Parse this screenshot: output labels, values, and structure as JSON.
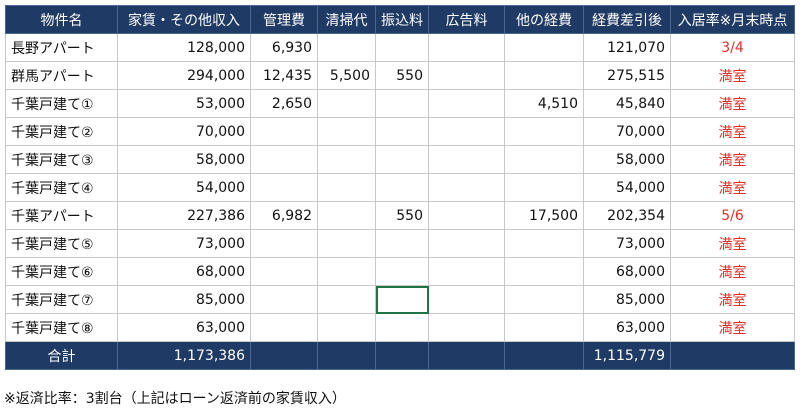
{
  "table": {
    "headers": [
      "物件名",
      "家賃・その他収入",
      "管理費",
      "清掃代",
      "振込料",
      "広告料",
      "他の経費",
      "経費差引後",
      "入居率※月末時点"
    ],
    "rows": [
      {
        "name": "長野アパート",
        "rent": "128,000",
        "mgmt": "6,930",
        "cleaning": "",
        "transfer": "",
        "ad": "",
        "other": "",
        "net": "121,070",
        "occupancy": "3/4"
      },
      {
        "name": "群馬アパート",
        "rent": "294,000",
        "mgmt": "12,435",
        "cleaning": "5,500",
        "transfer": "550",
        "ad": "",
        "other": "",
        "net": "275,515",
        "occupancy": "満室"
      },
      {
        "name": "千葉戸建て①",
        "rent": "53,000",
        "mgmt": "2,650",
        "cleaning": "",
        "transfer": "",
        "ad": "",
        "other": "4,510",
        "net": "45,840",
        "occupancy": "満室"
      },
      {
        "name": "千葉戸建て②",
        "rent": "70,000",
        "mgmt": "",
        "cleaning": "",
        "transfer": "",
        "ad": "",
        "other": "",
        "net": "70,000",
        "occupancy": "満室"
      },
      {
        "name": "千葉戸建て③",
        "rent": "58,000",
        "mgmt": "",
        "cleaning": "",
        "transfer": "",
        "ad": "",
        "other": "",
        "net": "58,000",
        "occupancy": "満室"
      },
      {
        "name": "千葉戸建て④",
        "rent": "54,000",
        "mgmt": "",
        "cleaning": "",
        "transfer": "",
        "ad": "",
        "other": "",
        "net": "54,000",
        "occupancy": "満室"
      },
      {
        "name": "千葉アパート",
        "rent": "227,386",
        "mgmt": "6,982",
        "cleaning": "",
        "transfer": "550",
        "ad": "",
        "other": "17,500",
        "net": "202,354",
        "occupancy": "5/6"
      },
      {
        "name": "千葉戸建て⑤",
        "rent": "73,000",
        "mgmt": "",
        "cleaning": "",
        "transfer": "",
        "ad": "",
        "other": "",
        "net": "73,000",
        "occupancy": "満室"
      },
      {
        "name": "千葉戸建て⑥",
        "rent": "68,000",
        "mgmt": "",
        "cleaning": "",
        "transfer": "",
        "ad": "",
        "other": "",
        "net": "68,000",
        "occupancy": "満室"
      },
      {
        "name": "千葉戸建て⑦",
        "rent": "85,000",
        "mgmt": "",
        "cleaning": "",
        "transfer": "",
        "ad": "",
        "other": "",
        "net": "85,000",
        "occupancy": "満室"
      },
      {
        "name": "千葉戸建て⑧",
        "rent": "63,000",
        "mgmt": "",
        "cleaning": "",
        "transfer": "",
        "ad": "",
        "other": "",
        "net": "63,000",
        "occupancy": "満室"
      }
    ],
    "total": {
      "label": "合計",
      "rent": "1,173,386",
      "net": "1,115,779"
    }
  },
  "note": "※返済比率：3割台（上記はローン返済前の家賃収入）",
  "colors": {
    "header_bg": "#1f3a64",
    "header_text": "#ffffff",
    "status_text": "#e0302a",
    "grid": "#c9c9c9",
    "selection": "#217346"
  }
}
